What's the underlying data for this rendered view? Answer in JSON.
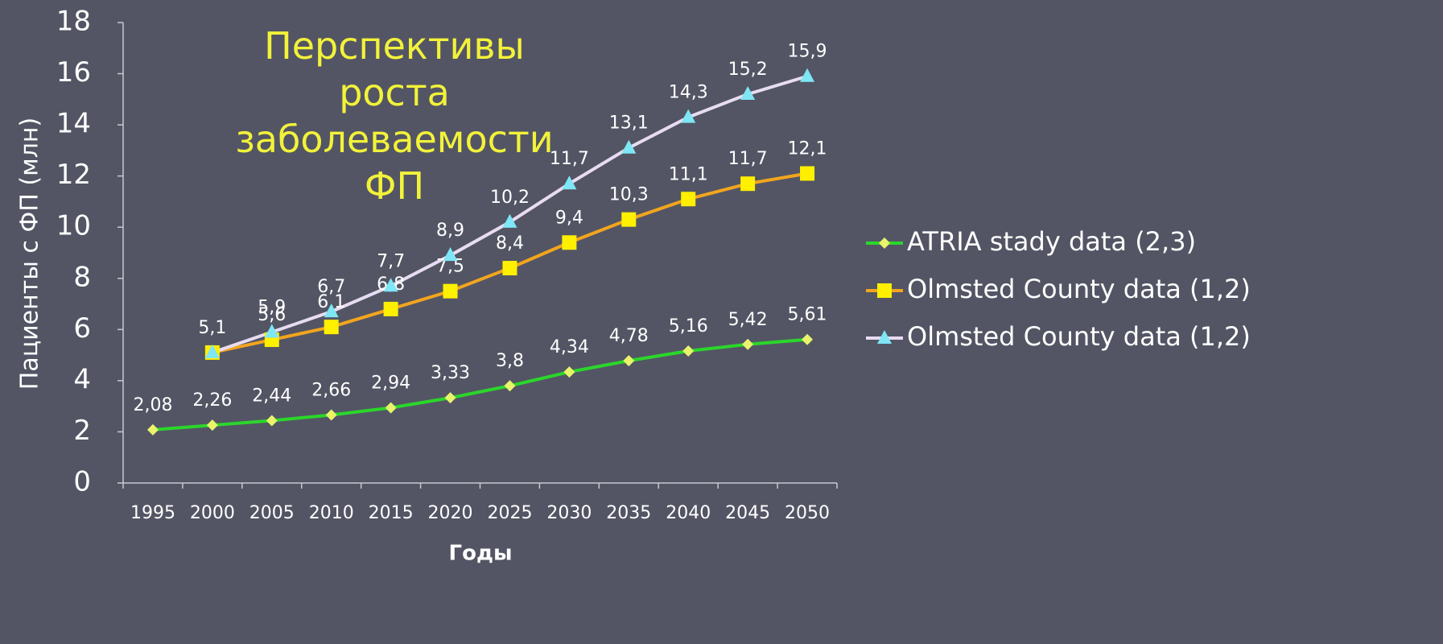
{
  "chart_data": {
    "type": "line",
    "title": "Перспективы роста заболеваемости ФП",
    "y_label": "Пациенты с ФП (млн)",
    "x_label": "Годы",
    "categories": [
      "1995",
      "2000",
      "2005",
      "2010",
      "2015",
      "2020",
      "2025",
      "2030",
      "2035",
      "2040",
      "2045",
      "2050"
    ],
    "ylim": [
      0,
      18
    ],
    "yticks": [
      0,
      2,
      4,
      6,
      8,
      10,
      12,
      14,
      16,
      18
    ],
    "grid": false,
    "legend": "right",
    "series": [
      {
        "name": "ATRIA stady data (2,3)",
        "color": "#2bd62b",
        "marker": "diamond",
        "marker_color": "#e8f56a",
        "values": [
          2.08,
          2.26,
          2.44,
          2.66,
          2.94,
          3.33,
          3.8,
          4.34,
          4.78,
          5.16,
          5.42,
          5.61
        ],
        "value_labels": [
          "2,08",
          "2,26",
          "2,44",
          "2,66",
          "2,94",
          "3,33",
          "3,8",
          "4,34",
          "4,78",
          "5,16",
          "5,42",
          "5,61"
        ]
      },
      {
        "name": "Olmsted County data (1,2)",
        "color": "#f2a51e",
        "marker": "square",
        "marker_color": "#fff000",
        "values": [
          null,
          5.1,
          5.6,
          6.1,
          6.8,
          7.5,
          8.4,
          9.4,
          10.3,
          11.1,
          11.7,
          12.1
        ],
        "value_labels": [
          null,
          null,
          "5,6",
          "6,1",
          "6,8",
          "7,5",
          "8,4",
          "9,4",
          "10,3",
          "11,1",
          "11,7",
          "12,1"
        ]
      },
      {
        "name": "Olmsted County data (1,2)",
        "color": "#e8dcf2",
        "marker": "triangle",
        "marker_color": "#7ee6f5",
        "values": [
          null,
          5.1,
          5.9,
          6.7,
          7.7,
          8.9,
          10.2,
          11.7,
          13.1,
          14.3,
          15.2,
          15.9
        ],
        "value_labels": [
          null,
          "5,1",
          "5,9",
          "6,7",
          "7,7",
          "8,9",
          "10,2",
          "11,7",
          "13,1",
          "14,3",
          "15,2",
          "15,9"
        ]
      }
    ]
  }
}
